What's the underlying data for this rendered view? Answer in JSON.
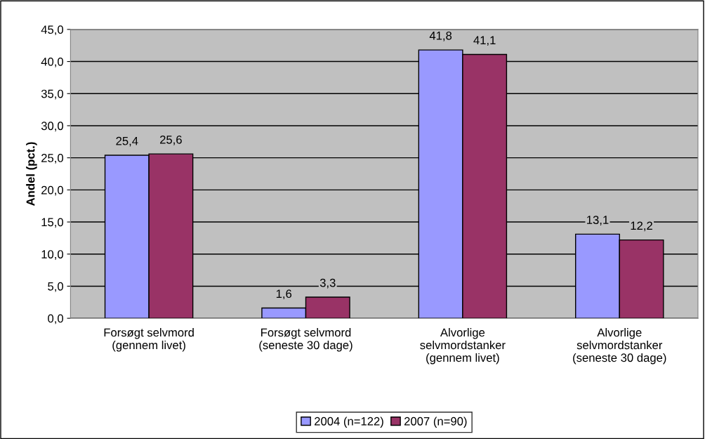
{
  "chart_data": {
    "type": "bar",
    "ylabel": "Andel (pct.)",
    "categories": [
      "Forsøgt selvmord\n(gennem livet)",
      "Forsøgt selvmord\n(seneste 30 dage)",
      "Alvorlige\nselvmordstanker\n(gennem livet)",
      "Alvorlige\nselvmordstanker\n(seneste 30 dage)"
    ],
    "series": [
      {
        "name": "2004 (n=122)",
        "color": "#9999ff",
        "values": [
          25.4,
          1.6,
          41.8,
          13.1
        ],
        "value_labels": [
          "25,4",
          "1,6",
          "41,8",
          "13,1"
        ]
      },
      {
        "name": "2007 (n=90)",
        "color": "#993366",
        "values": [
          25.6,
          3.3,
          41.1,
          12.2
        ],
        "value_labels": [
          "25,6",
          "3,3",
          "41,1",
          "12,2"
        ]
      }
    ],
    "ylim": [
      0,
      45
    ],
    "yticks": [
      {
        "value": 0,
        "label": "0,0"
      },
      {
        "value": 5,
        "label": "5,0"
      },
      {
        "value": 10,
        "label": "10,0"
      },
      {
        "value": 15,
        "label": "15,0"
      },
      {
        "value": 20,
        "label": "20,0"
      },
      {
        "value": 25,
        "label": "25,0"
      },
      {
        "value": 30,
        "label": "30,0"
      },
      {
        "value": 35,
        "label": "35,0"
      },
      {
        "value": 40,
        "label": "40,0"
      },
      {
        "value": 45,
        "label": "45,0"
      }
    ],
    "grid": "y",
    "legend": "bottom"
  }
}
